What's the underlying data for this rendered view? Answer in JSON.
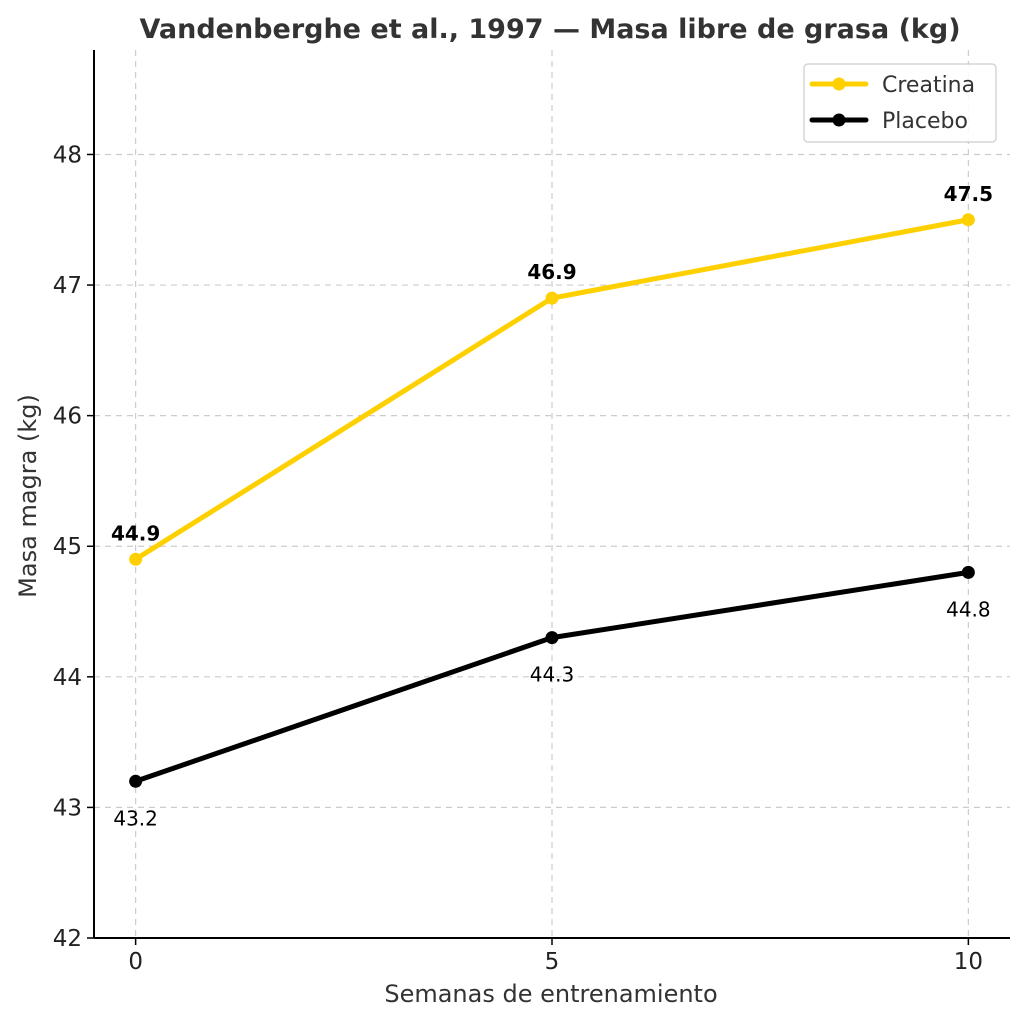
{
  "chart_data": {
    "type": "line",
    "title": "Vandenberghe et al., 1997 — Masa libre de grasa (kg)",
    "xlabel": "Semanas de entrenamiento",
    "ylabel": "Masa magra (kg)",
    "x": [
      0,
      5,
      10
    ],
    "xticks": [
      "0",
      "5",
      "10"
    ],
    "xlim": [
      -0.5,
      10.5
    ],
    "ylim": [
      42,
      48.8
    ],
    "yticks": [
      "42",
      "43",
      "44",
      "45",
      "46",
      "47",
      "48"
    ],
    "grid": true,
    "legend_position": "top-right",
    "series": [
      {
        "name": "Creatina",
        "values": [
          44.9,
          46.9,
          47.5
        ],
        "labels": [
          "44.9",
          "46.9",
          "47.5"
        ],
        "color": "#FFD000",
        "label_style": "bold-above"
      },
      {
        "name": "Placebo",
        "values": [
          43.2,
          44.3,
          44.8
        ],
        "labels": [
          "43.2",
          "44.3",
          "44.8"
        ],
        "color": "#000000",
        "label_style": "normal-below"
      }
    ]
  }
}
